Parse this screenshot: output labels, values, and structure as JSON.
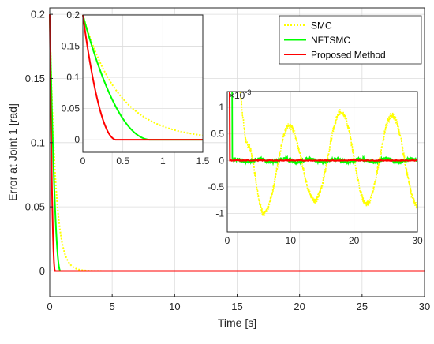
{
  "chart_data": [
    {
      "id": "main",
      "type": "line",
      "title": "",
      "xlabel": "Time [s]",
      "ylabel": "Error at Joint 1 [rad]",
      "xlim": [
        0,
        30
      ],
      "ylim": [
        -0.02,
        0.205
      ],
      "xticks": [
        0,
        5,
        10,
        15,
        20,
        25,
        30
      ],
      "yticks": [
        0,
        0.05,
        0.1,
        0.15,
        0.2
      ],
      "ytick_labels": [
        "0",
        "0.05",
        "0.1",
        "0.15",
        "0.2"
      ],
      "grid": true,
      "legend": {
        "placement": "top-right",
        "entries": [
          "SMC",
          "NFTSMC",
          "Proposed Method"
        ]
      },
      "series": [
        {
          "name": "SMC",
          "color": "#ffff00",
          "style": "dotted",
          "model": "exp",
          "y0": 0.2,
          "tau": 0.45
        },
        {
          "name": "NFTSMC",
          "color": "#00ff00",
          "style": "solid",
          "model": "finite",
          "y0": 0.2,
          "ts": 0.85
        },
        {
          "name": "Proposed Method",
          "color": "#ff0000",
          "style": "solid",
          "model": "finite",
          "y0": 0.2,
          "ts": 0.42
        }
      ]
    },
    {
      "id": "inset-zoom",
      "type": "line",
      "xlim": [
        0,
        1.5
      ],
      "ylim": [
        -0.02,
        0.2
      ],
      "xticks": [
        0,
        0.5,
        1,
        1.5
      ],
      "xtick_labels": [
        "0",
        "0.5",
        "1",
        "1.5"
      ],
      "yticks": [
        0,
        0.05,
        0.1,
        0.15,
        0.2
      ],
      "ytick_labels": [
        "0",
        "0.05",
        "0.1",
        "0.15",
        "0.2"
      ],
      "grid": true
    },
    {
      "id": "inset-steady",
      "type": "line",
      "xlim": [
        0,
        30
      ],
      "ylim": [
        -1.35,
        1.3
      ],
      "y_exponent_label": "×10",
      "y_exponent": "-3",
      "xticks": [
        0,
        10,
        20,
        30
      ],
      "yticks": [
        -1,
        -0.5,
        0,
        0.5,
        1
      ],
      "ytick_labels": [
        "-1",
        "-0.5",
        "0",
        "0.5",
        "1"
      ],
      "grid": true,
      "smc_oscillation_peaks": [
        [
          1.6,
          1.5
        ],
        [
          3.2,
          0.3
        ],
        [
          5.8,
          -1.0
        ],
        [
          9.8,
          0.65
        ],
        [
          13.8,
          -0.75
        ],
        [
          18.0,
          0.92
        ],
        [
          22.0,
          -0.82
        ],
        [
          26.0,
          0.85
        ],
        [
          30.0,
          -0.85
        ]
      ]
    }
  ],
  "colors": {
    "smc": "#ffff00",
    "nftsmc": "#00ff00",
    "proposed": "#ff0000",
    "axis": "#262626"
  }
}
